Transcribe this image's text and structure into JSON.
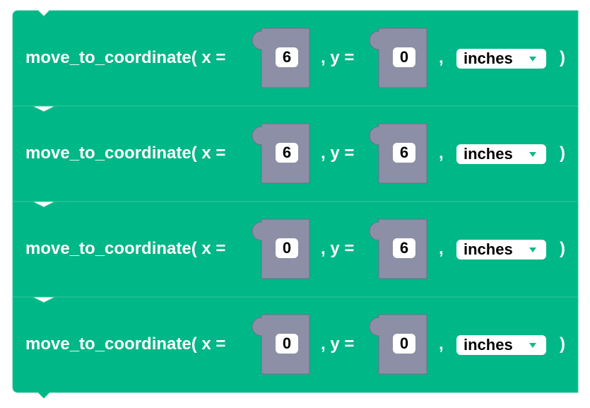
{
  "colors": {
    "block_fill": "#00b787",
    "block_edge": "#3cc59e",
    "slot_fill": "#8d8fa6",
    "slot_edge": "#6e7088",
    "dropdown_arrow": "#1ab58a"
  },
  "blocks": [
    {
      "function_label": "move_to_coordinate( x =",
      "y_label": ", y =",
      "comma_label": ",",
      "close_paren": ")",
      "x_value": "6",
      "y_value": "0",
      "unit": "inches"
    },
    {
      "function_label": "move_to_coordinate( x =",
      "y_label": ", y =",
      "comma_label": ",",
      "close_paren": ")",
      "x_value": "6",
      "y_value": "6",
      "unit": "inches"
    },
    {
      "function_label": "move_to_coordinate( x =",
      "y_label": ", y =",
      "comma_label": ",",
      "close_paren": ")",
      "x_value": "0",
      "y_value": "6",
      "unit": "inches"
    },
    {
      "function_label": "move_to_coordinate( x =",
      "y_label": ", y =",
      "comma_label": ",",
      "close_paren": ")",
      "x_value": "0",
      "y_value": "0",
      "unit": "inches"
    }
  ]
}
